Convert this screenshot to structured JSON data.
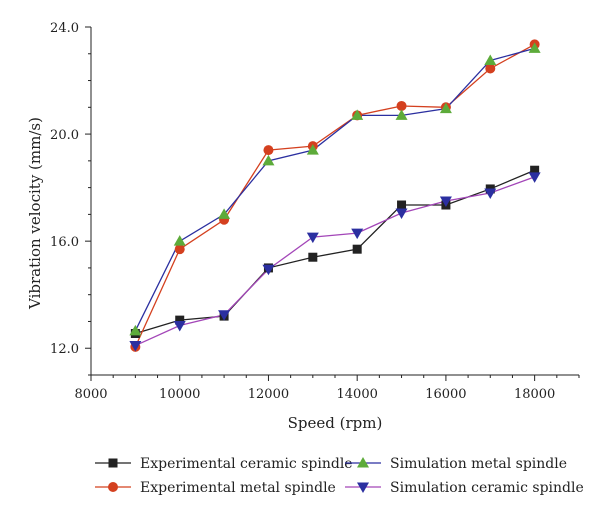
{
  "chart_data": {
    "type": "line",
    "title": "",
    "xlabel": "Speed (rpm)",
    "ylabel": "Vibration velocity (mm/s)",
    "xlim": [
      8000,
      19000
    ],
    "ylim": [
      11.0,
      24.0
    ],
    "x_ticks": [
      "8000",
      "10000",
      "12000",
      "14000",
      "16000",
      "18000"
    ],
    "y_ticks": [
      "12.0",
      "16.0",
      "20.0",
      "24.0"
    ],
    "grid": false,
    "legend_position": "bottom",
    "x": [
      9000,
      10000,
      11000,
      12000,
      13000,
      14000,
      15000,
      16000,
      17000,
      18000
    ],
    "series": [
      {
        "name": "Experimental ceramic spindle",
        "color": "#222222",
        "marker": "square",
        "values": [
          12.55,
          13.05,
          13.2,
          15.0,
          15.4,
          15.7,
          17.35,
          17.35,
          17.95,
          18.65
        ]
      },
      {
        "name": "Experimental metal spindle",
        "color": "#d4401f",
        "marker": "circle",
        "values": [
          12.05,
          15.7,
          16.8,
          19.4,
          19.55,
          20.7,
          21.05,
          21.0,
          22.45,
          23.35
        ]
      },
      {
        "name": "Simulation metal spindle",
        "color": "#2b2fa0",
        "marker_color": "#5dab3a",
        "marker": "triangle-up",
        "values": [
          12.65,
          16.0,
          17.0,
          19.0,
          19.4,
          20.7,
          20.7,
          20.95,
          22.75,
          23.2
        ]
      },
      {
        "name": "Simulation ceramic spindle",
        "color": "#a346b8",
        "marker_color": "#2b2fa0",
        "marker": "triangle-down",
        "values": [
          12.1,
          12.85,
          13.25,
          14.95,
          16.15,
          16.3,
          17.05,
          17.5,
          17.8,
          18.4
        ]
      }
    ]
  }
}
